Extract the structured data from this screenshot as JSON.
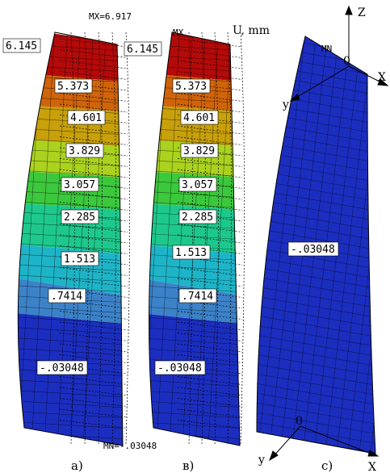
{
  "units_label": "U, mm",
  "max_label": "MX=6.917",
  "min_label": "MN=-.03048",
  "contour_levels": [
    "6.145",
    "5.373",
    "4.601",
    "3.829",
    "3.057",
    "2.285",
    "1.513",
    ".7414",
    "-.03048"
  ],
  "contour_colors": [
    "#b40a0a",
    "#d0640a",
    "#c8a00a",
    "#aad21e",
    "#3cc83c",
    "#1ec88c",
    "#1eb4c8",
    "#3c82c8",
    "#1c2ec0"
  ],
  "panels": [
    {
      "caption": "а)",
      "mark": ""
    },
    {
      "caption": "в)",
      "mark": "MX"
    },
    {
      "caption": "c)",
      "mark": "MN"
    }
  ],
  "panel_c_value": "-.03048",
  "axes_top": {
    "z": "Z",
    "y": "y",
    "x": "X",
    "origin": "0"
  },
  "axes_bottom": {
    "y": "y",
    "x": "X",
    "origin": "0"
  }
}
